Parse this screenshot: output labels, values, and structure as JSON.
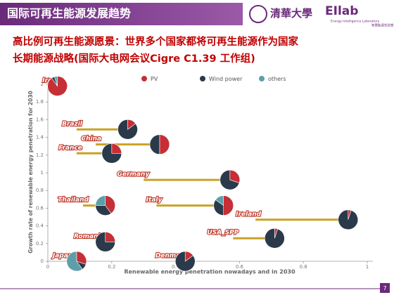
{
  "header": {
    "title": "国际可再生能源发展趋势",
    "logo_left": "清華大學",
    "logo_right": "EIlab",
    "logo_sub": "Energy Intelligence Laboratory",
    "logo_sub_cn": "智慧能源实验室"
  },
  "subtitle": [
    "高比例可再生能源愿景：世界多个国家都将可再生能源作为国家",
    "长期能源战略(国际大电网会议Cigre  C1.39 工作组)"
  ],
  "page_number": "7",
  "chart_data": {
    "type": "pie-scatter",
    "xlabel": "Renewable energy penetration nowadays and in 2030",
    "ylabel": "Growth rate of renewable energy penetration for 2030",
    "xlim": [
      0,
      1
    ],
    "xticks": [
      0,
      0.2,
      0.4,
      0.6,
      0.8,
      1
    ],
    "ylim": [
      0,
      2
    ],
    "yticks": [
      0,
      0.2,
      0.4,
      0.6,
      0.8,
      1,
      1.2,
      1.4,
      1.6,
      1.8,
      2
    ],
    "line_color": "#c9a227",
    "series": [
      {
        "name": "PV",
        "color": "#c62f36"
      },
      {
        "name": "Wind power",
        "color": "#2b3a4a"
      },
      {
        "name": "others",
        "color": "#5e9ea8"
      }
    ],
    "points": [
      {
        "label": "Iran",
        "x_now": 0.01,
        "x": 0.03,
        "y": 1.98,
        "shares": [
          90,
          5,
          5
        ]
      },
      {
        "label": "Brazil",
        "x_now": 0.09,
        "x": 0.25,
        "y": 1.49,
        "shares": [
          15,
          85,
          0
        ]
      },
      {
        "label": "China",
        "x_now": 0.15,
        "x": 0.35,
        "y": 1.32,
        "shares": [
          50,
          50,
          0
        ]
      },
      {
        "label": "France",
        "x_now": 0.09,
        "x": 0.2,
        "y": 1.22,
        "shares": [
          25,
          75,
          0
        ]
      },
      {
        "label": "Germany",
        "x_now": 0.3,
        "x": 0.57,
        "y": 0.92,
        "shares": [
          30,
          70,
          0
        ]
      },
      {
        "label": "Thailand",
        "x_now": 0.11,
        "x": 0.18,
        "y": 0.63,
        "shares": [
          40,
          35,
          25
        ]
      },
      {
        "label": "Italy",
        "x_now": 0.34,
        "x": 0.55,
        "y": 0.63,
        "shares": [
          50,
          35,
          15
        ]
      },
      {
        "label": "Ireland",
        "x_now": 0.65,
        "x": 0.94,
        "y": 0.47,
        "shares": [
          5,
          95,
          0
        ]
      },
      {
        "label": "USA_SPP",
        "x_now": 0.58,
        "x": 0.71,
        "y": 0.26,
        "shares": [
          5,
          95,
          0
        ]
      },
      {
        "label": "Romania",
        "x_now": 0.16,
        "x": 0.18,
        "y": 0.22,
        "shares": [
          25,
          75,
          0
        ]
      },
      {
        "label": "Japan",
        "x_now": 0.06,
        "x": 0.09,
        "y": 0.0,
        "shares": [
          30,
          10,
          60
        ]
      },
      {
        "label": "Denmark",
        "x_now": 0.42,
        "x": 0.43,
        "y": 0.0,
        "shares": [
          15,
          85,
          0
        ]
      }
    ]
  }
}
